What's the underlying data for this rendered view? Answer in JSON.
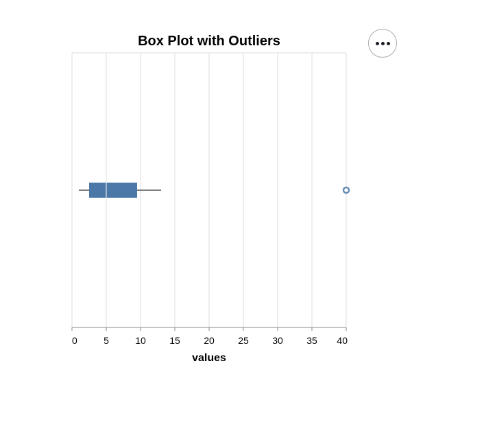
{
  "chart_data": {
    "type": "boxplot",
    "title": "Box Plot with Outliers",
    "xlabel": "values",
    "ylabel": "",
    "xlim": [
      0,
      40
    ],
    "xticks": [
      0,
      5,
      10,
      15,
      20,
      25,
      30,
      35,
      40
    ],
    "grid": true,
    "box": {
      "whisker_low": 1,
      "q1": 2.5,
      "median": 5,
      "q3": 9.5,
      "whisker_high": 13
    },
    "outliers": [
      40
    ],
    "colors": {
      "box": "#4c78a8",
      "median": "#ffffff",
      "whisker": "#000000",
      "outlier": "#4c78a8",
      "grid": "#dddddd"
    }
  },
  "actions_menu": {
    "icon": "ellipsis-icon"
  }
}
